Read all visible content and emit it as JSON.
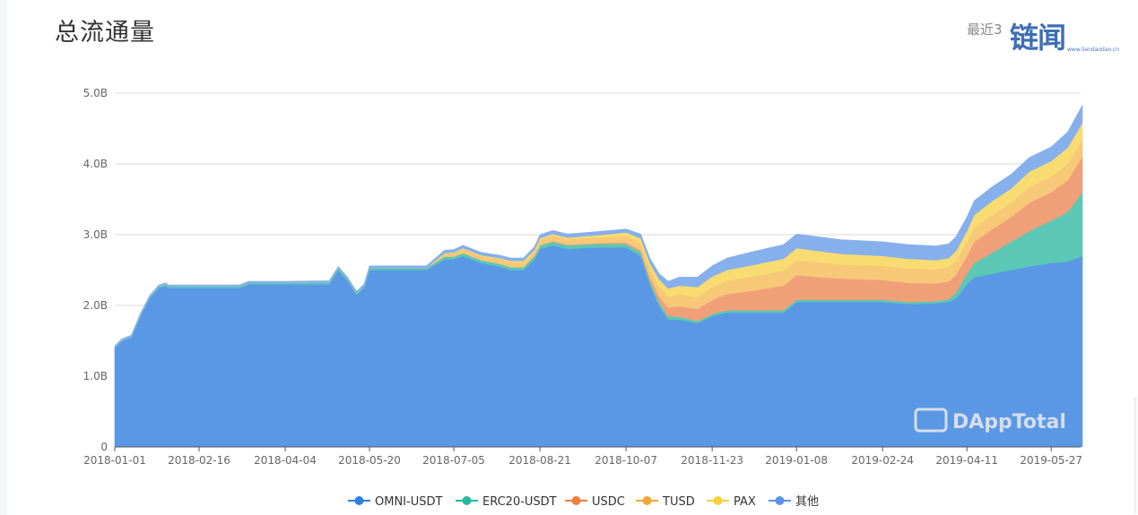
{
  "header": {
    "title": "总流通量",
    "range_label": "最近3"
  },
  "logo": {
    "text": "链闻",
    "url": "www.liandaodao.cn"
  },
  "watermark": {
    "text": "DAppTotal"
  },
  "colors": {
    "OMNI-USDT": "#5a98e6",
    "ERC20-USDT": "#5ac8b4",
    "USDC": "#f0a078",
    "TUSD": "#f7c878",
    "PAX": "#f8dc72",
    "其他": "#86b0ec",
    "legend_OMNI-USDT": "#2f80e0",
    "legend_ERC20-USDT": "#27b9a0",
    "legend_USDC": "#ee7f3c",
    "legend_TUSD": "#f0a838",
    "legend_PAX": "#f8d13c",
    "legend_其他": "#5c93e6"
  },
  "chart_data": {
    "type": "area",
    "stacked": true,
    "title": "总流通量",
    "xlabel": "",
    "ylabel": "",
    "ylim": [
      0,
      5.0
    ],
    "y_ticks": [
      {
        "value": 0,
        "label": "0"
      },
      {
        "value": 1.0,
        "label": "1.0B"
      },
      {
        "value": 2.0,
        "label": "2.0B"
      },
      {
        "value": 3.0,
        "label": "3.0B"
      },
      {
        "value": 4.0,
        "label": "4.0B"
      },
      {
        "value": 5.0,
        "label": "5.0B"
      }
    ],
    "x_ticks": [
      "2018-01-01",
      "2018-02-16",
      "2018-04-04",
      "2018-05-20",
      "2018-07-05",
      "2018-08-21",
      "2018-10-07",
      "2018-11-23",
      "2019-01-08",
      "2019-02-24",
      "2019-04-11",
      "2019-05-27"
    ],
    "grid": true,
    "legend_position": "bottom",
    "x": [
      "2018-01-01",
      "2018-01-05",
      "2018-01-10",
      "2018-01-15",
      "2018-01-20",
      "2018-01-25",
      "2018-01-29",
      "2018-01-30",
      "2018-02-16",
      "2018-03-10",
      "2018-03-15",
      "2018-04-04",
      "2018-04-28",
      "2018-05-03",
      "2018-05-08",
      "2018-05-13",
      "2018-05-17",
      "2018-05-20",
      "2018-06-10",
      "2018-06-20",
      "2018-06-30",
      "2018-07-05",
      "2018-07-10",
      "2018-07-20",
      "2018-07-30",
      "2018-08-05",
      "2018-08-12",
      "2018-08-18",
      "2018-08-21",
      "2018-08-28",
      "2018-09-05",
      "2018-09-20",
      "2018-10-07",
      "2018-10-15",
      "2018-10-20",
      "2018-10-25",
      "2018-10-30",
      "2018-11-05",
      "2018-11-15",
      "2018-11-23",
      "2018-12-01",
      "2018-12-15",
      "2019-01-01",
      "2019-01-08",
      "2019-01-20",
      "2019-02-01",
      "2019-02-24",
      "2019-03-10",
      "2019-03-25",
      "2019-04-01",
      "2019-04-05",
      "2019-04-11",
      "2019-04-15",
      "2019-04-25",
      "2019-05-05",
      "2019-05-15",
      "2019-05-27",
      "2019-06-05",
      "2019-06-13"
    ],
    "series": [
      {
        "name": "OMNI-USDT",
        "values": [
          1.4,
          1.5,
          1.55,
          1.85,
          2.1,
          2.25,
          2.28,
          2.25,
          2.25,
          2.25,
          2.3,
          2.3,
          2.3,
          2.5,
          2.35,
          2.15,
          2.25,
          2.5,
          2.5,
          2.5,
          2.65,
          2.65,
          2.7,
          2.6,
          2.55,
          2.5,
          2.5,
          2.65,
          2.8,
          2.85,
          2.8,
          2.82,
          2.82,
          2.7,
          2.3,
          2.0,
          1.8,
          1.8,
          1.75,
          1.85,
          1.9,
          1.9,
          1.9,
          2.05,
          2.05,
          2.05,
          2.05,
          2.02,
          2.03,
          2.05,
          2.1,
          2.3,
          2.4,
          2.45,
          2.5,
          2.55,
          2.6,
          2.62,
          2.7
        ]
      },
      {
        "name": "ERC20-USDT",
        "values": [
          0.01,
          0.01,
          0.01,
          0.02,
          0.02,
          0.02,
          0.02,
          0.02,
          0.02,
          0.02,
          0.02,
          0.02,
          0.03,
          0.03,
          0.03,
          0.03,
          0.03,
          0.03,
          0.03,
          0.03,
          0.04,
          0.04,
          0.04,
          0.04,
          0.04,
          0.04,
          0.04,
          0.05,
          0.05,
          0.05,
          0.05,
          0.05,
          0.05,
          0.05,
          0.05,
          0.05,
          0.05,
          0.04,
          0.03,
          0.03,
          0.03,
          0.03,
          0.03,
          0.03,
          0.03,
          0.03,
          0.03,
          0.03,
          0.03,
          0.04,
          0.08,
          0.15,
          0.2,
          0.3,
          0.4,
          0.5,
          0.6,
          0.7,
          0.9
        ]
      },
      {
        "name": "USDC",
        "values": [
          0,
          0,
          0,
          0,
          0,
          0,
          0,
          0,
          0,
          0,
          0,
          0,
          0,
          0,
          0,
          0,
          0,
          0,
          0,
          0,
          0,
          0,
          0,
          0,
          0,
          0,
          0,
          0,
          0,
          0.01,
          0.01,
          0.01,
          0.02,
          0.03,
          0.05,
          0.08,
          0.12,
          0.15,
          0.17,
          0.2,
          0.23,
          0.28,
          0.35,
          0.35,
          0.32,
          0.3,
          0.28,
          0.27,
          0.25,
          0.25,
          0.25,
          0.25,
          0.3,
          0.33,
          0.35,
          0.4,
          0.4,
          0.45,
          0.5
        ]
      },
      {
        "name": "TUSD",
        "values": [
          0,
          0,
          0,
          0,
          0,
          0,
          0,
          0,
          0,
          0,
          0,
          0,
          0,
          0,
          0,
          0,
          0,
          0,
          0,
          0,
          0.04,
          0.05,
          0.06,
          0.06,
          0.07,
          0.07,
          0.07,
          0.07,
          0.08,
          0.08,
          0.08,
          0.08,
          0.09,
          0.1,
          0.12,
          0.14,
          0.15,
          0.16,
          0.17,
          0.18,
          0.19,
          0.2,
          0.21,
          0.21,
          0.21,
          0.2,
          0.2,
          0.2,
          0.2,
          0.2,
          0.2,
          0.2,
          0.2,
          0.2,
          0.2,
          0.22,
          0.22,
          0.23,
          0.24
        ]
      },
      {
        "name": "PAX",
        "values": [
          0,
          0,
          0,
          0,
          0,
          0,
          0,
          0,
          0,
          0,
          0,
          0,
          0,
          0,
          0,
          0,
          0,
          0,
          0,
          0,
          0.01,
          0.01,
          0.01,
          0.01,
          0.01,
          0.02,
          0.02,
          0.02,
          0.02,
          0.02,
          0.02,
          0.03,
          0.05,
          0.07,
          0.08,
          0.1,
          0.12,
          0.13,
          0.14,
          0.15,
          0.15,
          0.16,
          0.17,
          0.17,
          0.16,
          0.15,
          0.14,
          0.14,
          0.13,
          0.13,
          0.14,
          0.15,
          0.18,
          0.2,
          0.2,
          0.22,
          0.22,
          0.23,
          0.24
        ]
      },
      {
        "name": "其他",
        "values": [
          0.02,
          0.02,
          0.02,
          0.02,
          0.02,
          0.02,
          0.02,
          0.02,
          0.02,
          0.02,
          0.02,
          0.02,
          0.02,
          0.02,
          0.02,
          0.02,
          0.02,
          0.03,
          0.03,
          0.03,
          0.04,
          0.04,
          0.04,
          0.04,
          0.04,
          0.04,
          0.04,
          0.04,
          0.05,
          0.05,
          0.05,
          0.05,
          0.05,
          0.06,
          0.07,
          0.08,
          0.1,
          0.12,
          0.14,
          0.15,
          0.17,
          0.19,
          0.2,
          0.2,
          0.2,
          0.2,
          0.2,
          0.2,
          0.2,
          0.2,
          0.2,
          0.2,
          0.2,
          0.2,
          0.2,
          0.2,
          0.2,
          0.22,
          0.25
        ]
      }
    ]
  }
}
